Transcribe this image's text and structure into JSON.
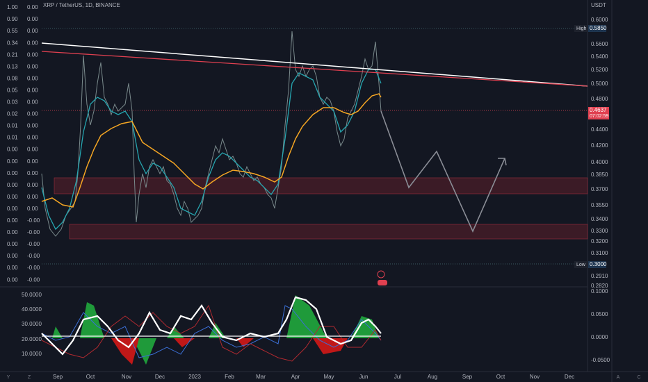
{
  "header": {
    "symbol": "XRP / TetherUS, 1D, BINANCE"
  },
  "price_axis": {
    "currency": "USDT",
    "labels": [
      "0.6000",
      "0.5600",
      "0.5400",
      "0.5200",
      "0.5000",
      "0.4800",
      "0.4400",
      "0.4200",
      "0.4000",
      "0.3850",
      "0.3700",
      "0.3550",
      "0.3400",
      "0.3300",
      "0.3200",
      "0.3100",
      "0.2910",
      "0.2820"
    ],
    "high": {
      "tag": "High",
      "value": "0.5850"
    },
    "low": {
      "tag": "Low",
      "value": "0.3000"
    },
    "current": {
      "value": "0.4637",
      "countdown": "07:02:59"
    }
  },
  "left_scale_1": [
    "1.00",
    "0.90",
    "0.55",
    "0.34",
    "0.21",
    "0.13",
    "0.08",
    "0.05",
    "0.03",
    "0.02",
    "0.01",
    "0.01",
    "0.00",
    "0.00",
    "0.00",
    "0.00",
    "0.00",
    "0.00",
    "0.00",
    "0.00",
    "0.00",
    "0.00",
    "0.00",
    "0.00"
  ],
  "left_scale_2": [
    "0.00",
    "0.00",
    "0.00",
    "0.00",
    "0.00",
    "0.00",
    "0.00",
    "0.00",
    "0.00",
    "0.00",
    "0.00",
    "0.00",
    "0.00",
    "0.00",
    "0.00",
    "0.00",
    "0.00",
    "0.00",
    "-0.00",
    "-0.00",
    "-0.00",
    "-0.00",
    "-0.00",
    "-0.00"
  ],
  "indicator": {
    "left_labels": [
      "50.0000",
      "40.0000",
      "30.0000",
      "20.0000",
      "10.0000"
    ],
    "right_labels": [
      "0.1000",
      "0.0500",
      "0.0000",
      "-0.0500"
    ]
  },
  "time_axis": [
    "Sep",
    "Oct",
    "Nov",
    "Dec",
    "2023",
    "Feb",
    "Mar",
    "Apr",
    "May",
    "Jun",
    "Jul",
    "Aug",
    "Sep",
    "Oct",
    "Nov",
    "Dec"
  ],
  "corner_letters": [
    "Y",
    "Z",
    "A",
    "C"
  ]
}
